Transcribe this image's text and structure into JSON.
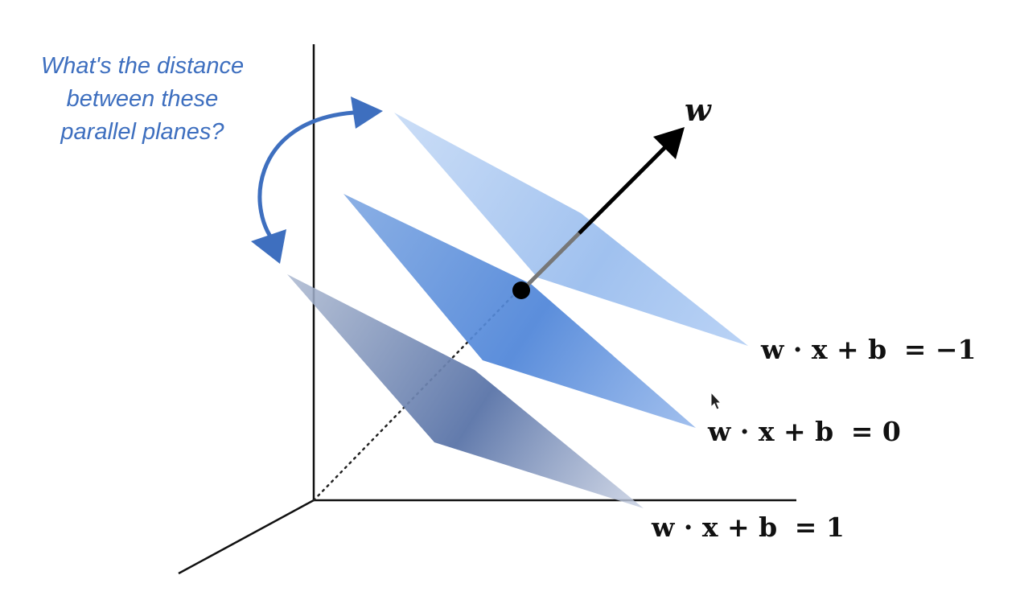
{
  "annotation": {
    "lines": [
      "What's the distance",
      "between these",
      "parallel planes?"
    ]
  },
  "vector_label": "w",
  "planes": [
    {
      "id": "upper",
      "label_lhs": "w · x + b",
      "label_rhs": "= −1"
    },
    {
      "id": "middle",
      "label_lhs": "w · x + b",
      "label_rhs": "= 0"
    },
    {
      "id": "lower",
      "label_lhs": "w · x + b",
      "label_rhs": "= 1"
    }
  ],
  "colors": {
    "annotation": "#3e6fbf",
    "axes": "#111111",
    "vector": "#000000"
  },
  "icons": [
    "curved-double-arrow-icon",
    "mouse-cursor-icon"
  ]
}
